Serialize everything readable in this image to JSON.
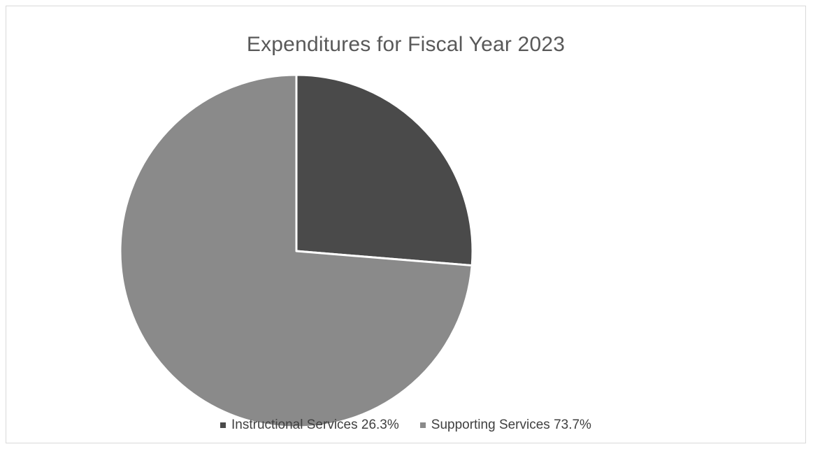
{
  "chart_data": {
    "type": "pie",
    "title": "Expenditures for Fiscal Year 2023",
    "slices": [
      {
        "label": "Instructional Services 26.3%",
        "value": 26.3,
        "color": "#4a4a4a"
      },
      {
        "label": "Supporting Services 73.7%",
        "value": 73.7,
        "color": "#8a8a8a"
      }
    ],
    "legend_position": "bottom"
  }
}
